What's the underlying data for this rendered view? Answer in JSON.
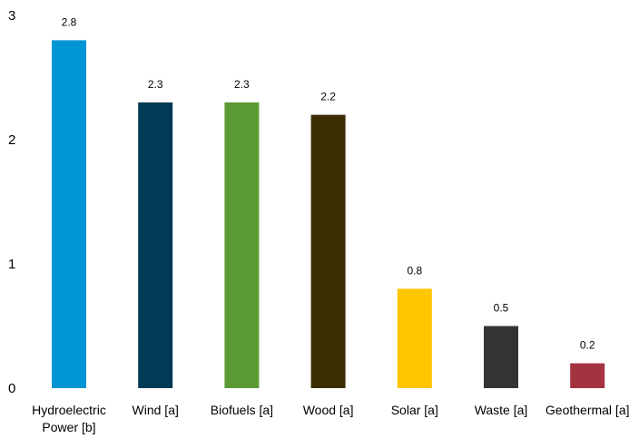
{
  "chart_data": {
    "type": "bar",
    "categories": [
      "Hydroelectric Power [b]",
      "Wind [a]",
      "Biofuels [a]",
      "Wood [a]",
      "Solar [a]",
      "Waste [a]",
      "Geothermal [a]"
    ],
    "category_lines": [
      [
        "Hydroelectric",
        "Power [b]"
      ],
      [
        "Wind [a]"
      ],
      [
        "Biofuels [a]"
      ],
      [
        "Wood [a]"
      ],
      [
        "Solar [a]"
      ],
      [
        "Waste [a]"
      ],
      [
        "Geothermal [a]"
      ]
    ],
    "values": [
      2.8,
      2.3,
      2.3,
      2.2,
      0.8,
      0.5,
      0.2
    ],
    "value_labels": [
      "2.8",
      "2.3",
      "2.3",
      "2.2",
      "0.8",
      "0.5",
      "0.2"
    ],
    "colors": [
      "#0096d6",
      "#003a57",
      "#5c9b34",
      "#3b2e05",
      "#ffc600",
      "#333333",
      "#a3343f"
    ],
    "title": "",
    "xlabel": "",
    "ylabel": "",
    "ylim": [
      0,
      3
    ],
    "yticks": [
      0,
      1,
      2,
      3
    ],
    "ytick_labels": [
      "0",
      "1",
      "2",
      "3"
    ],
    "grid": false,
    "legend": "none"
  }
}
